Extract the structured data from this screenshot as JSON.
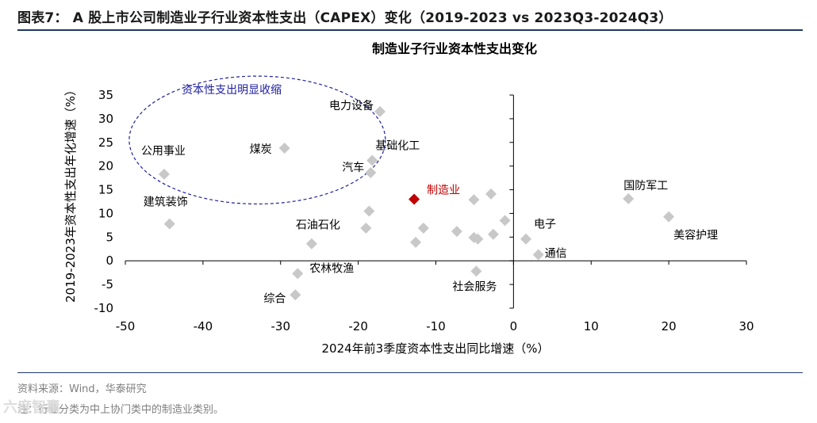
{
  "figure": {
    "title": "图表7： A 股上市公司制造业子行业资本性支出（CAPEX）变化（2019-2023 vs 2023Q3-2024Q3）",
    "source": "资料来源：Wind，华泰研究",
    "note": "注：行业分类为中上协门类中的制造业类别。",
    "watermark": "六度智囊"
  },
  "chart_data": {
    "type": "scatter",
    "title": "制造业子行业资本性支出变化",
    "xlabel": "2024年前3季度资本性支出同比增速（%）",
    "ylabel": "2019-2023年资本性支出年化增速（%）",
    "xlim": [
      -50,
      30
    ],
    "ylim": [
      -10,
      35
    ],
    "x_ticks": [
      -50,
      -40,
      -30,
      -20,
      -10,
      0,
      10,
      20,
      30
    ],
    "y_ticks": [
      -10,
      -5,
      0,
      5,
      10,
      15,
      20,
      25,
      30,
      35
    ],
    "grid": false,
    "point_color": "#c8c8c8",
    "highlight_color": "#c00000",
    "annotation_color": "#1f1fa0",
    "points": [
      {
        "label": "电力设备",
        "x": -17.2,
        "y": 31.5,
        "highlight": false
      },
      {
        "label": "煤炭",
        "x": -29.5,
        "y": 23.8,
        "highlight": false
      },
      {
        "label": "公用事业",
        "x": -45.0,
        "y": 18.3,
        "highlight": false
      },
      {
        "label": "基础化工",
        "x": -18.2,
        "y": 21.2,
        "highlight": false
      },
      {
        "label": "汽车",
        "x": -18.4,
        "y": 18.6,
        "highlight": false
      },
      {
        "label": "建筑装饰",
        "x": -44.3,
        "y": 7.8,
        "highlight": false
      },
      {
        "label": "石油石化",
        "x": -26.0,
        "y": 3.6,
        "highlight": false
      },
      {
        "label": "",
        "x": -18.6,
        "y": 10.5,
        "highlight": false
      },
      {
        "label": "",
        "x": -19.0,
        "y": 6.9,
        "highlight": false
      },
      {
        "label": "制造业",
        "x": -12.8,
        "y": 13.0,
        "highlight": true
      },
      {
        "label": "",
        "x": -11.6,
        "y": 6.9,
        "highlight": false
      },
      {
        "label": "",
        "x": -12.6,
        "y": 3.9,
        "highlight": false
      },
      {
        "label": "",
        "x": -7.3,
        "y": 6.2,
        "highlight": false
      },
      {
        "label": "",
        "x": -5.1,
        "y": 12.9,
        "highlight": false
      },
      {
        "label": "",
        "x": -2.9,
        "y": 14.1,
        "highlight": false
      },
      {
        "label": "",
        "x": -5.1,
        "y": 4.9,
        "highlight": false
      },
      {
        "label": "",
        "x": -4.6,
        "y": 4.6,
        "highlight": false
      },
      {
        "label": "",
        "x": -2.6,
        "y": 5.6,
        "highlight": false
      },
      {
        "label": "",
        "x": -1.1,
        "y": 8.5,
        "highlight": false
      },
      {
        "label": "电子",
        "x": 1.6,
        "y": 4.6,
        "highlight": false
      },
      {
        "label": "通信",
        "x": 3.2,
        "y": 1.3,
        "highlight": false
      },
      {
        "label": "社会服务",
        "x": -4.8,
        "y": -2.2,
        "highlight": false
      },
      {
        "label": "农林牧渔",
        "x": -27.8,
        "y": -2.7,
        "highlight": false
      },
      {
        "label": "综合",
        "x": -28.1,
        "y": -7.2,
        "highlight": false
      },
      {
        "label": "国防军工",
        "x": 14.8,
        "y": 13.1,
        "highlight": false
      },
      {
        "label": "美容护理",
        "x": 20.0,
        "y": 9.3,
        "highlight": false
      }
    ],
    "annotations": [
      {
        "text": "资本性支出明显收缩",
        "shape": "dashed-ellipse",
        "cx": -33.0,
        "cy": 25.5,
        "rx": 16.5,
        "ry": 13.5
      }
    ]
  }
}
